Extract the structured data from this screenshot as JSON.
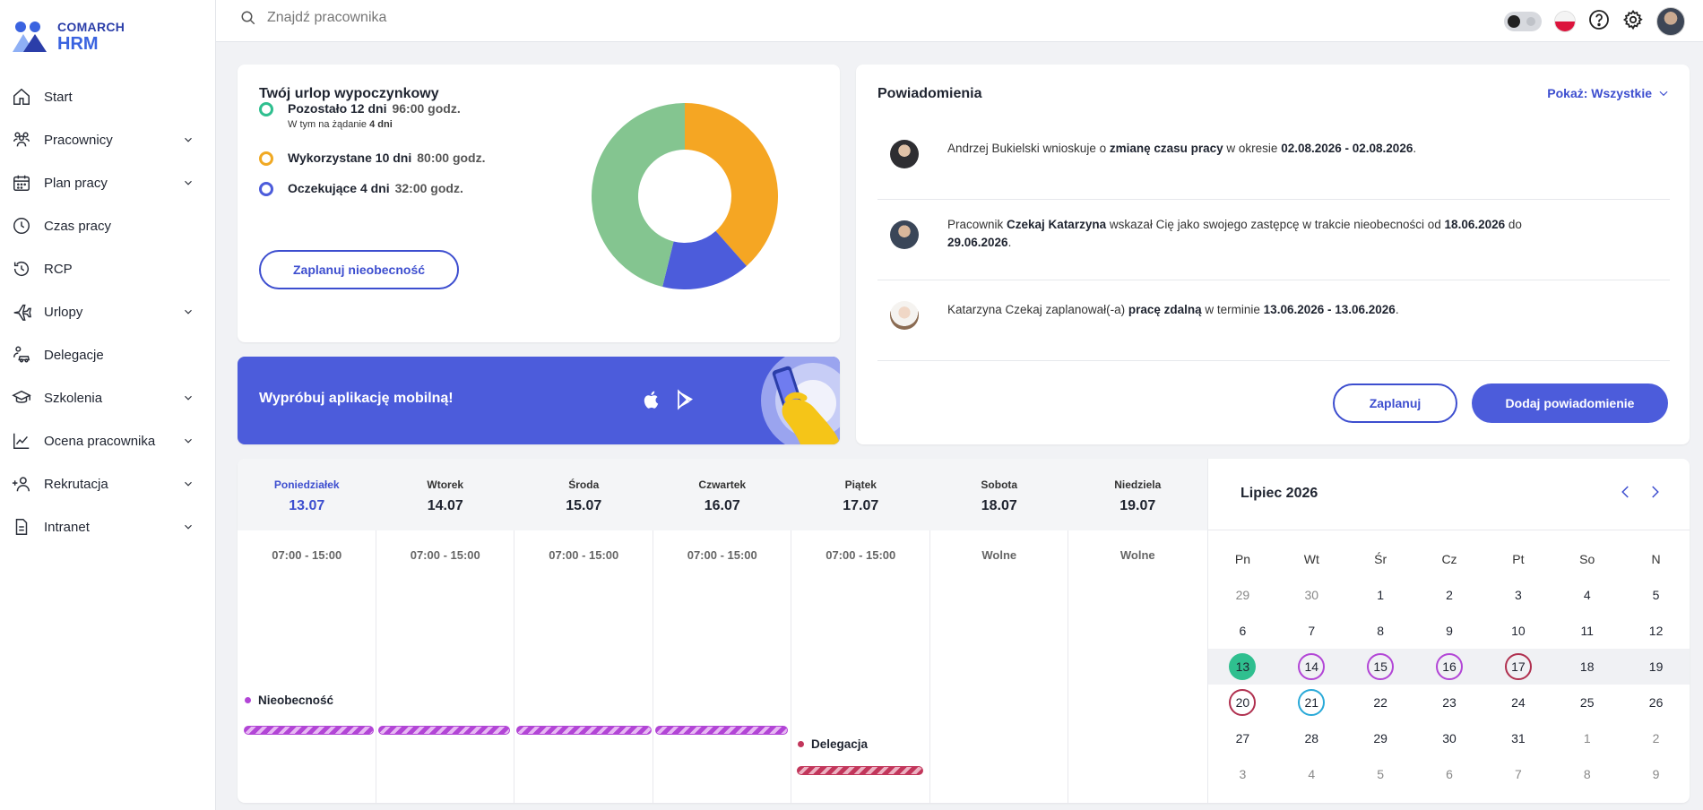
{
  "brand": {
    "line1": "COMARCH",
    "line2": "HRM"
  },
  "search": {
    "placeholder": "Znajdź pracownika"
  },
  "sidebar": {
    "items": [
      {
        "label": "Start",
        "icon": "home-icon",
        "expandable": false
      },
      {
        "label": "Pracownicy",
        "icon": "people-icon",
        "expandable": true
      },
      {
        "label": "Plan pracy",
        "icon": "calendar-icon",
        "expandable": true
      },
      {
        "label": "Czas pracy",
        "icon": "clock-icon",
        "expandable": false
      },
      {
        "label": "RCP",
        "icon": "history-icon",
        "expandable": false
      },
      {
        "label": "Urlopy",
        "icon": "plane-icon",
        "expandable": true
      },
      {
        "label": "Delegacje",
        "icon": "car-person-icon",
        "expandable": false
      },
      {
        "label": "Szkolenia",
        "icon": "graduation-cap-icon",
        "expandable": true
      },
      {
        "label": "Ocena pracownika",
        "icon": "chart-line-icon",
        "expandable": true
      },
      {
        "label": "Rekrutacja",
        "icon": "add-person-icon",
        "expandable": true
      },
      {
        "label": "Intranet",
        "icon": "document-icon",
        "expandable": true
      }
    ]
  },
  "leave": {
    "title": "Twój urlop wypoczynkowy",
    "rows": [
      {
        "label": "Pozostało 12 dni",
        "hours": "96:00 godz.",
        "sub_prefix": "W tym na żądanie",
        "sub_value": "4 dni",
        "color": "#2fbf8f"
      },
      {
        "label": "Wykorzystane 10 dni",
        "hours": "80:00 godz.",
        "color": "#f0a924"
      },
      {
        "label": "Oczekujące 4 dni",
        "hours": "32:00 godz.",
        "color": "#4c5cdb"
      }
    ],
    "plan_button": "Zaplanuj nieobecność",
    "chart_data": {
      "type": "pie",
      "categories": [
        "Wykorzystane",
        "Oczekujące",
        "Pozostało"
      ],
      "values": [
        10,
        4,
        12
      ],
      "colors": [
        "#f5a623",
        "#4c5cdb",
        "#84c590"
      ]
    }
  },
  "mobile": {
    "text": "Wypróbuj aplikację mobilną!",
    "icons": [
      "apple-icon",
      "google-play-icon"
    ]
  },
  "notifications": {
    "title": "Powiadomienia",
    "filter": "Pokaż: Wszystkie",
    "items": [
      {
        "parts": [
          "Andrzej Bukielski wnioskuje o ",
          "zmianę czasu pracy",
          " w okresie ",
          "02.08.2026 - 02.08.2026",
          "."
        ]
      },
      {
        "parts": [
          "Pracownik ",
          "Czekaj Katarzyna",
          " wskazał Cię jako swojego zastępcę w trakcie nieobecności od ",
          "18.06.2026",
          " do ",
          "29.06.2026",
          "."
        ]
      },
      {
        "parts": [
          "Katarzyna Czekaj zaplanował(-a) ",
          "pracę zdalną",
          " w terminie ",
          "13.06.2026 - 13.06.2026",
          "."
        ]
      }
    ],
    "btn_plan": "Zaplanuj",
    "btn_add": "Dodaj powiadomienie"
  },
  "week": {
    "days": [
      {
        "name": "Poniedziałek",
        "date": "13.07",
        "hours": "07:00 - 15:00",
        "today": true
      },
      {
        "name": "Wtorek",
        "date": "14.07",
        "hours": "07:00 - 15:00"
      },
      {
        "name": "Środa",
        "date": "15.07",
        "hours": "07:00 - 15:00"
      },
      {
        "name": "Czwartek",
        "date": "16.07",
        "hours": "07:00 - 15:00"
      },
      {
        "name": "Piątek",
        "date": "17.07",
        "hours": "07:00 - 15:00"
      },
      {
        "name": "Sobota",
        "date": "18.07",
        "hours": "Wolne"
      },
      {
        "name": "Niedziela",
        "date": "19.07",
        "hours": "Wolne"
      }
    ],
    "events": {
      "absence": {
        "label": "Nieobecność",
        "color": "#b245d6"
      },
      "trip": {
        "label": "Delegacja",
        "color": "#c2365b"
      }
    }
  },
  "calendar": {
    "title": "Lipiec 2026",
    "headers": [
      "Pn",
      "Wt",
      "Śr",
      "Cz",
      "Pt",
      "So",
      "N"
    ],
    "rows": [
      [
        "29",
        "30",
        "1",
        "2",
        "3",
        "4",
        "5"
      ],
      [
        "6",
        "7",
        "8",
        "9",
        "10",
        "11",
        "12"
      ],
      [
        "13",
        "14",
        "15",
        "16",
        "17",
        "18",
        "19"
      ],
      [
        "20",
        "21",
        "22",
        "23",
        "24",
        "25",
        "26"
      ],
      [
        "27",
        "28",
        "29",
        "30",
        "31",
        "1",
        "2"
      ],
      [
        "3",
        "4",
        "5",
        "6",
        "7",
        "8",
        "9"
      ]
    ]
  }
}
